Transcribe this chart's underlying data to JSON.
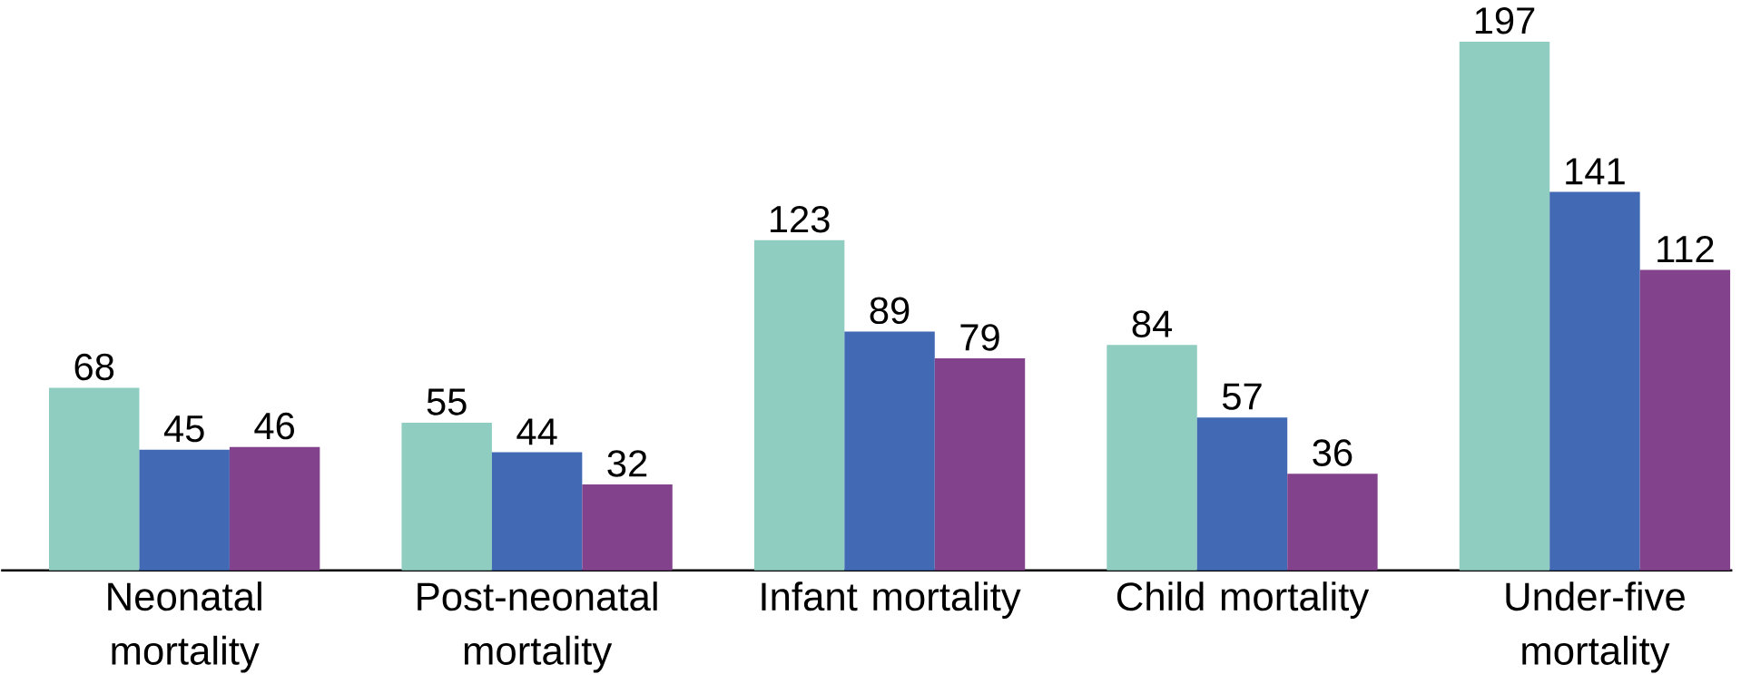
{
  "chart_data": {
    "type": "bar",
    "categories": [
      "Neonatal mortality",
      "Post-neonatal mortality",
      "Infant mortality",
      "Child mortality",
      "Under-five mortality"
    ],
    "series": [
      {
        "color": "#8ecdc0",
        "values": [
          68,
          55,
          123,
          84,
          197
        ]
      },
      {
        "color": "#4169b4",
        "values": [
          45,
          44,
          89,
          57,
          141
        ]
      },
      {
        "color": "#83428c",
        "values": [
          46,
          32,
          79,
          36,
          112
        ]
      }
    ],
    "data_labels": true
  }
}
